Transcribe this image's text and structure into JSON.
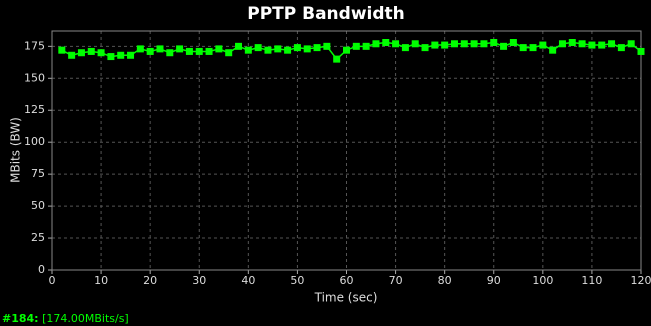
{
  "chart_data": {
    "type": "line",
    "title": "PPTP Bandwidth",
    "x_label": "Time (sec)",
    "y_label": "MBits (BW)",
    "x": [
      2,
      4,
      6,
      8,
      10,
      12,
      14,
      16,
      18,
      20,
      22,
      24,
      26,
      28,
      30,
      32,
      34,
      36,
      38,
      40,
      42,
      44,
      46,
      48,
      50,
      52,
      54,
      56,
      58,
      60,
      62,
      64,
      66,
      68,
      70,
      72,
      74,
      76,
      78,
      80,
      82,
      84,
      86,
      88,
      90,
      92,
      94,
      96,
      98,
      100,
      102,
      104,
      106,
      108,
      110,
      112,
      114,
      116,
      118,
      120
    ],
    "series": [
      {
        "color": "#00ff00",
        "values": [
          172,
          168,
          170,
          171,
          170,
          167,
          168,
          168,
          173,
          171,
          173,
          170,
          173,
          171,
          171,
          171,
          173,
          170,
          175,
          172,
          174,
          172,
          173,
          172,
          174,
          173,
          174,
          175,
          165,
          172,
          175,
          175,
          177,
          178,
          177,
          174,
          177,
          174,
          176,
          176,
          177,
          177,
          177,
          177,
          178,
          175,
          178,
          174,
          174,
          176,
          172,
          177,
          178,
          177,
          176,
          176,
          177,
          174,
          177,
          171
        ]
      }
    ],
    "xlim": [
      0,
      120
    ],
    "xticks": [
      0,
      10,
      20,
      30,
      40,
      50,
      60,
      70,
      80,
      90,
      100,
      110,
      120
    ],
    "ylim": [
      0,
      187
    ],
    "yticks": [
      0,
      25,
      50,
      75,
      100,
      125,
      150,
      175
    ],
    "grid": true
  },
  "status": {
    "label": "#184:",
    "value": "[174.00MBits/s]"
  }
}
